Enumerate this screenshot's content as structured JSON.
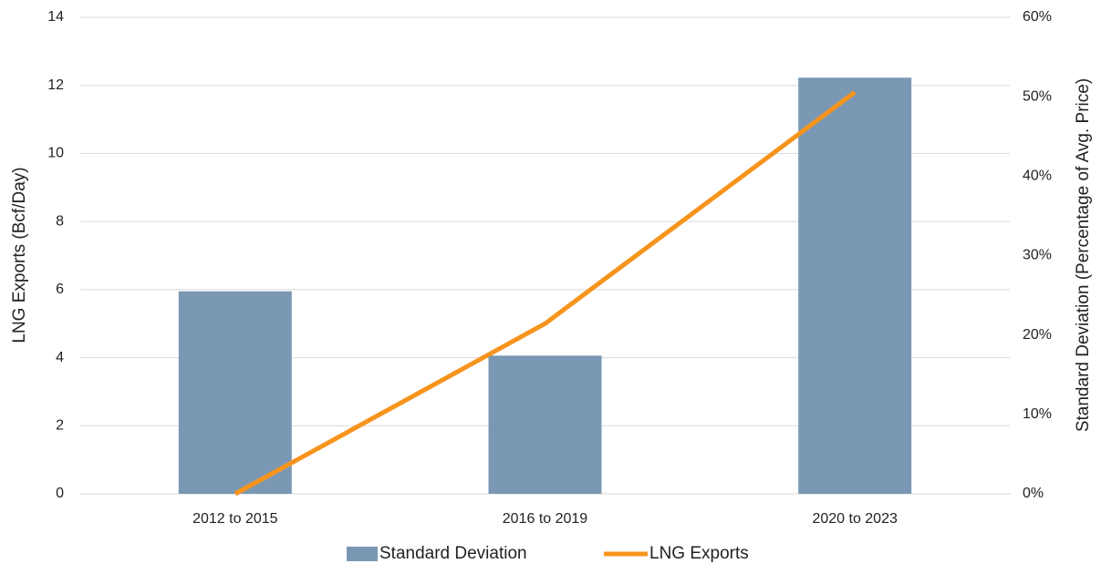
{
  "chart_data": {
    "type": "bar-line",
    "categories": [
      "2012 to 2015",
      "2016 to 2019",
      "2020 to 2023"
    ],
    "series": [
      {
        "name": "Standard Deviation",
        "type": "bar",
        "color": "#7a98b3",
        "axis": "y2",
        "values": [
          25.5,
          17.4,
          52.4
        ]
      },
      {
        "name": "LNG Exports",
        "type": "line",
        "color": "#f7941d",
        "axis": "y",
        "values": [
          0,
          5.0,
          11.8
        ]
      }
    ],
    "ylabel": "LNG Exports (Bcf/Day)",
    "y2label": "Standard Deviation (Percentage of Avg. Price)",
    "ylim": [
      0,
      14
    ],
    "yticks": [
      0,
      2,
      4,
      6,
      8,
      10,
      12,
      14
    ],
    "y2lim": [
      0,
      60
    ],
    "y2ticks": [
      {
        "value": 0,
        "label": "0%"
      },
      {
        "value": 10,
        "label": "10%"
      },
      {
        "value": 20,
        "label": "20%"
      },
      {
        "value": 30,
        "label": "30%"
      },
      {
        "value": 40,
        "label": "40%"
      },
      {
        "value": 50,
        "label": "50%"
      },
      {
        "value": 60,
        "label": "60%"
      }
    ],
    "grid": true,
    "legend": "bottom"
  }
}
